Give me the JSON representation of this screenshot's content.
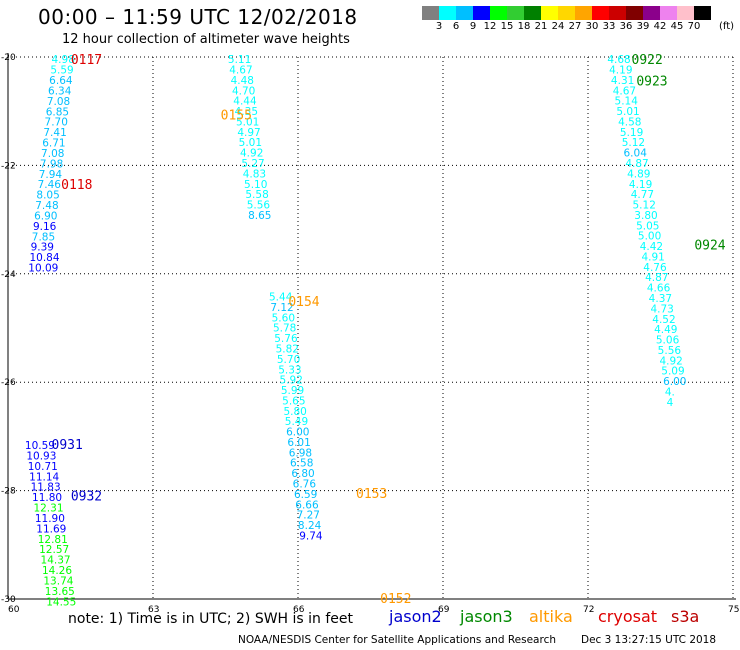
{
  "header": {
    "title": "00:00 – 11:59 UTC 12/02/2018",
    "subtitle": "12 hour collection of altimeter wave heights"
  },
  "colorbar": {
    "labels": [
      "3",
      "6",
      "9",
      "12",
      "15",
      "18",
      "21",
      "24",
      "27",
      "30",
      "33",
      "36",
      "39",
      "42",
      "45",
      "70"
    ],
    "unit": "(ft)",
    "colors": [
      "#808080",
      "#00ffff",
      "#00bfff",
      "#0000ff",
      "#00ff00",
      "#32cd32",
      "#008000",
      "#ffff00",
      "#ffd700",
      "#ffa500",
      "#ff0000",
      "#cc0000",
      "#800000",
      "#8b008b",
      "#ee82ee",
      "#ffc0cb",
      "#000000"
    ]
  },
  "note": "note: 1) Time is in UTC; 2) SWH is in feet",
  "satellites": [
    {
      "name": "jason2",
      "color": "#0000cc"
    },
    {
      "name": "jason3",
      "color": "#008800"
    },
    {
      "name": "altika",
      "color": "#ff9900"
    },
    {
      "name": "cryosat",
      "color": "#dd0000"
    },
    {
      "name": "s3a",
      "color": "#bb0000"
    }
  ],
  "credit": "NOAA/NESDIS Center for Satellite Applications and Research",
  "timestamp": "Dec  3 13:27:15 UTC 2018",
  "chart_data": {
    "type": "scatter",
    "x_ticks": [
      "60",
      "63",
      "66",
      "69",
      "72",
      "75"
    ],
    "y_ticks": [
      "-20",
      "-22",
      "-24",
      "-26",
      "-28",
      "-30"
    ],
    "xlim": [
      60,
      75
    ],
    "ylim": [
      -30,
      -20
    ],
    "grid": true,
    "track_labels": [
      {
        "label": "0117",
        "lon": 61.3,
        "lat": -20.04,
        "color": "#dd0000"
      },
      {
        "label": "0118",
        "lon": 61.1,
        "lat": -22.34,
        "color": "#dd0000"
      },
      {
        "label": "0155",
        "lon": 64.4,
        "lat": -21.06,
        "color": "#ff9900"
      },
      {
        "label": "0154",
        "lon": 65.8,
        "lat": -24.5,
        "color": "#ff9900"
      },
      {
        "label": "0153",
        "lon": 67.2,
        "lat": -28.04,
        "color": "#ff9900"
      },
      {
        "label": "0152",
        "lon": 67.7,
        "lat": -29.98,
        "color": "#ff9900"
      },
      {
        "label": "0931",
        "lon": 60.9,
        "lat": -27.14,
        "color": "#0000cc"
      },
      {
        "label": "0932",
        "lon": 61.3,
        "lat": -28.09,
        "color": "#0000cc"
      },
      {
        "label": "0922",
        "lon": 72.9,
        "lat": -20.04,
        "color": "#008800"
      },
      {
        "label": "0923",
        "lon": 73.0,
        "lat": -20.43,
        "color": "#008800"
      },
      {
        "label": "0924",
        "lon": 74.2,
        "lat": -23.46,
        "color": "#008800"
      }
    ],
    "tracks": [
      {
        "satellite": "cryosat",
        "name": "0117-0118",
        "lon_start": 60.9,
        "lon_step": -0.024,
        "lat_start": -20.04,
        "lat_step": 0.1922,
        "values": [
          {
            "v": "4.98",
            "c": "#00ffff"
          },
          {
            "v": "5.59",
            "c": "#00ffff"
          },
          {
            "v": "6.64",
            "c": "#00bfff"
          },
          {
            "v": "6.34",
            "c": "#00bfff"
          },
          {
            "v": "7.08",
            "c": "#00bfff"
          },
          {
            "v": "6.85",
            "c": "#00bfff"
          },
          {
            "v": "7.70",
            "c": "#00bfff"
          },
          {
            "v": "7.41",
            "c": "#00bfff"
          },
          {
            "v": "6.71",
            "c": "#00bfff"
          },
          {
            "v": "7.08",
            "c": "#00bfff"
          },
          {
            "v": "7.98",
            "c": "#00bfff"
          },
          {
            "v": "7.94",
            "c": "#00bfff"
          },
          {
            "v": "7.46",
            "c": "#00bfff"
          },
          {
            "v": "8.05",
            "c": "#00bfff"
          },
          {
            "v": "7.48",
            "c": "#00bfff"
          },
          {
            "v": "6.90",
            "c": "#00bfff"
          },
          {
            "v": "9.16",
            "c": "#0000ff"
          },
          {
            "v": "7.85",
            "c": "#00bfff"
          },
          {
            "v": "9.39",
            "c": "#0000ff"
          },
          {
            "v": "10.84",
            "c": "#0000ff"
          },
          {
            "v": "10.09",
            "c": "#0000ff"
          }
        ]
      },
      {
        "satellite": "altika",
        "name": "0155",
        "lon_start": 64.55,
        "lon_step": 0.0278,
        "lat_start": -20.04,
        "lat_step": 0.1916,
        "values": [
          {
            "v": "5.11",
            "c": "#00ffff"
          },
          {
            "v": "4.67",
            "c": "#00ffff"
          },
          {
            "v": "4.48",
            "c": "#00ffff"
          },
          {
            "v": "4.70",
            "c": "#00ffff"
          },
          {
            "v": "4.44",
            "c": "#00ffff"
          },
          {
            "v": "4.35",
            "c": "#00ffff"
          },
          {
            "v": "5.01",
            "c": "#00ffff"
          },
          {
            "v": "4.97",
            "c": "#00ffff"
          },
          {
            "v": "5.01",
            "c": "#00ffff"
          },
          {
            "v": "4.92",
            "c": "#00ffff"
          },
          {
            "v": "5.27",
            "c": "#00ffff"
          },
          {
            "v": "4.83",
            "c": "#00ffff"
          },
          {
            "v": "5.10",
            "c": "#00ffff"
          },
          {
            "v": "5.58",
            "c": "#00ffff"
          },
          {
            "v": "5.56",
            "c": "#00ffff"
          },
          {
            "v": "8.65",
            "c": "#00bfff"
          }
        ]
      },
      {
        "satellite": "altika",
        "name": "0154-0153-0152",
        "lon_start": 65.4,
        "lon_step": 0.0272,
        "lat_start": -24.42,
        "lat_step": 0.1916,
        "values": [
          {
            "v": "5.44",
            "c": "#00ffff"
          },
          {
            "v": "7.12",
            "c": "#00bfff"
          },
          {
            "v": "5.60",
            "c": "#00ffff"
          },
          {
            "v": "5.78",
            "c": "#00ffff"
          },
          {
            "v": "5.76",
            "c": "#00ffff"
          },
          {
            "v": "5.82",
            "c": "#00ffff"
          },
          {
            "v": "5.70",
            "c": "#00ffff"
          },
          {
            "v": "5.33",
            "c": "#00ffff"
          },
          {
            "v": "5.92",
            "c": "#00ffff"
          },
          {
            "v": "5.99",
            "c": "#00ffff"
          },
          {
            "v": "5.65",
            "c": "#00ffff"
          },
          {
            "v": "5.80",
            "c": "#00ffff"
          },
          {
            "v": "5.49",
            "c": "#00ffff"
          },
          {
            "v": "6.00",
            "c": "#00bfff"
          },
          {
            "v": "6.01",
            "c": "#00bfff"
          },
          {
            "v": "6.98",
            "c": "#00bfff"
          },
          {
            "v": "6.58",
            "c": "#00bfff"
          },
          {
            "v": "6.80",
            "c": "#00bfff"
          },
          {
            "v": "6.76",
            "c": "#00bfff"
          },
          {
            "v": "6.59",
            "c": "#00bfff"
          },
          {
            "v": "6.66",
            "c": "#00bfff"
          },
          {
            "v": "7.27",
            "c": "#00bfff"
          },
          {
            "v": "8.24",
            "c": "#00bfff"
          },
          {
            "v": "9.74",
            "c": "#0000ff"
          }
        ]
      },
      {
        "satellite": "jason2",
        "name": "0931-0932",
        "lon_start": 60.35,
        "lon_step": 0.0294,
        "lat_start": -27.16,
        "lat_step": 0.1922,
        "values": [
          {
            "v": "10.59",
            "c": "#0000ff"
          },
          {
            "v": "10.93",
            "c": "#0000ff"
          },
          {
            "v": "10.71",
            "c": "#0000ff"
          },
          {
            "v": "11.14",
            "c": "#0000ff"
          },
          {
            "v": "11.83",
            "c": "#0000ff"
          },
          {
            "v": "11.80",
            "c": "#0000ff"
          },
          {
            "v": "12.31",
            "c": "#00ff00"
          },
          {
            "v": "11.90",
            "c": "#0000ff"
          },
          {
            "v": "11.69",
            "c": "#0000ff"
          },
          {
            "v": "12.81",
            "c": "#00ff00"
          },
          {
            "v": "12.57",
            "c": "#00ff00"
          },
          {
            "v": "14.37",
            "c": "#00ff00"
          },
          {
            "v": "14.26",
            "c": "#00ff00"
          },
          {
            "v": "13.74",
            "c": "#00ff00"
          },
          {
            "v": "13.65",
            "c": "#00ff00"
          },
          {
            "v": "14.55",
            "c": "#00ff00"
          }
        ]
      },
      {
        "satellite": "jason3",
        "name": "0922-0923-0924",
        "lon_start": 72.4,
        "lon_step": 0.0372,
        "lat_start": -20.04,
        "lat_step": 0.1916,
        "values": [
          {
            "v": "4.68",
            "c": "#00ffff"
          },
          {
            "v": "4.19",
            "c": "#00ffff"
          },
          {
            "v": "4.31",
            "c": "#00ffff"
          },
          {
            "v": "4.67",
            "c": "#00ffff"
          },
          {
            "v": "5.14",
            "c": "#00ffff"
          },
          {
            "v": "5.01",
            "c": "#00ffff"
          },
          {
            "v": "4.58",
            "c": "#00ffff"
          },
          {
            "v": "5.19",
            "c": "#00ffff"
          },
          {
            "v": "5.12",
            "c": "#00ffff"
          },
          {
            "v": "6.04",
            "c": "#00bfff"
          },
          {
            "v": "4.87",
            "c": "#00ffff"
          },
          {
            "v": "4.89",
            "c": "#00ffff"
          },
          {
            "v": "4.19",
            "c": "#00ffff"
          },
          {
            "v": "4.77",
            "c": "#00ffff"
          },
          {
            "v": "5.12",
            "c": "#00ffff"
          },
          {
            "v": "3.80",
            "c": "#00ffff"
          },
          {
            "v": "5.05",
            "c": "#00ffff"
          },
          {
            "v": "5.00",
            "c": "#00ffff"
          },
          {
            "v": "4.42",
            "c": "#00ffff"
          },
          {
            "v": "4.91",
            "c": "#00ffff"
          },
          {
            "v": "4.76",
            "c": "#00ffff"
          },
          {
            "v": "4.87",
            "c": "#00ffff"
          },
          {
            "v": "4.66",
            "c": "#00ffff"
          },
          {
            "v": "4.37",
            "c": "#00ffff"
          },
          {
            "v": "4.73",
            "c": "#00ffff"
          },
          {
            "v": "4.52",
            "c": "#00ffff"
          },
          {
            "v": "4.49",
            "c": "#00ffff"
          },
          {
            "v": "5.06",
            "c": "#00ffff"
          },
          {
            "v": "5.56",
            "c": "#00ffff"
          },
          {
            "v": "4.92",
            "c": "#00ffff"
          },
          {
            "v": "5.09",
            "c": "#00ffff"
          },
          {
            "v": "6.00",
            "c": "#00bfff"
          },
          {
            "v": "4.",
            "c": "#00ffff"
          },
          {
            "v": "4",
            "c": "#00ffff"
          }
        ]
      }
    ]
  }
}
